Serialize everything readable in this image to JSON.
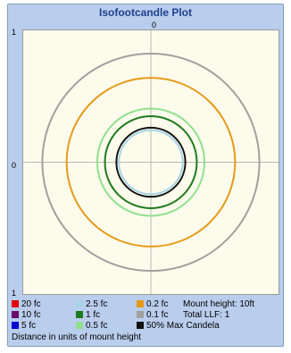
{
  "chart_data": {
    "type": "isofootcandle-contour",
    "title": "Isofootcandle Plot",
    "x_tick_top": "0",
    "y_tick_top": "1",
    "y_tick_mid": "0",
    "y_tick_bottom": "1",
    "xlim": [
      -1,
      1
    ],
    "ylim": [
      -1,
      1
    ],
    "grid": "center crosshair",
    "contours": [
      {
        "label": "0.1 fc",
        "color": "#a0a0a0",
        "radius": 0.85
      },
      {
        "label": "0.2 fc",
        "color": "#e69a1a",
        "radius": 0.66
      },
      {
        "label": "0.5 fc",
        "color": "#8fe08f",
        "radius": 0.42
      },
      {
        "label": "1 fc",
        "color": "#1e7a1e",
        "radius": 0.36
      },
      {
        "label": "50% Max Candela",
        "color": "#111111",
        "radius": 0.27
      },
      {
        "label": "2.5 fc",
        "color": "#a8d4e6",
        "radius": 0.25
      }
    ],
    "legend": [
      {
        "label": "20 fc",
        "color": "#e00000"
      },
      {
        "label": "10 fc",
        "color": "#6a0a6a"
      },
      {
        "label": "5 fc",
        "color": "#0000d0"
      },
      {
        "label": "2.5 fc",
        "color": "#a8d4e6"
      },
      {
        "label": "1 fc",
        "color": "#1e7a1e"
      },
      {
        "label": "0.5 fc",
        "color": "#8fe08f"
      },
      {
        "label": "0.2 fc",
        "color": "#e69a1a"
      },
      {
        "label": "0.1 fc",
        "color": "#a0a0a0"
      },
      {
        "label": "50% Max Candela",
        "color": "#111111"
      }
    ]
  },
  "info": {
    "mount_height": "Mount height: 10ft",
    "total_llf": "Total LLF: 1",
    "units_note": "Distance in units of mount height"
  }
}
